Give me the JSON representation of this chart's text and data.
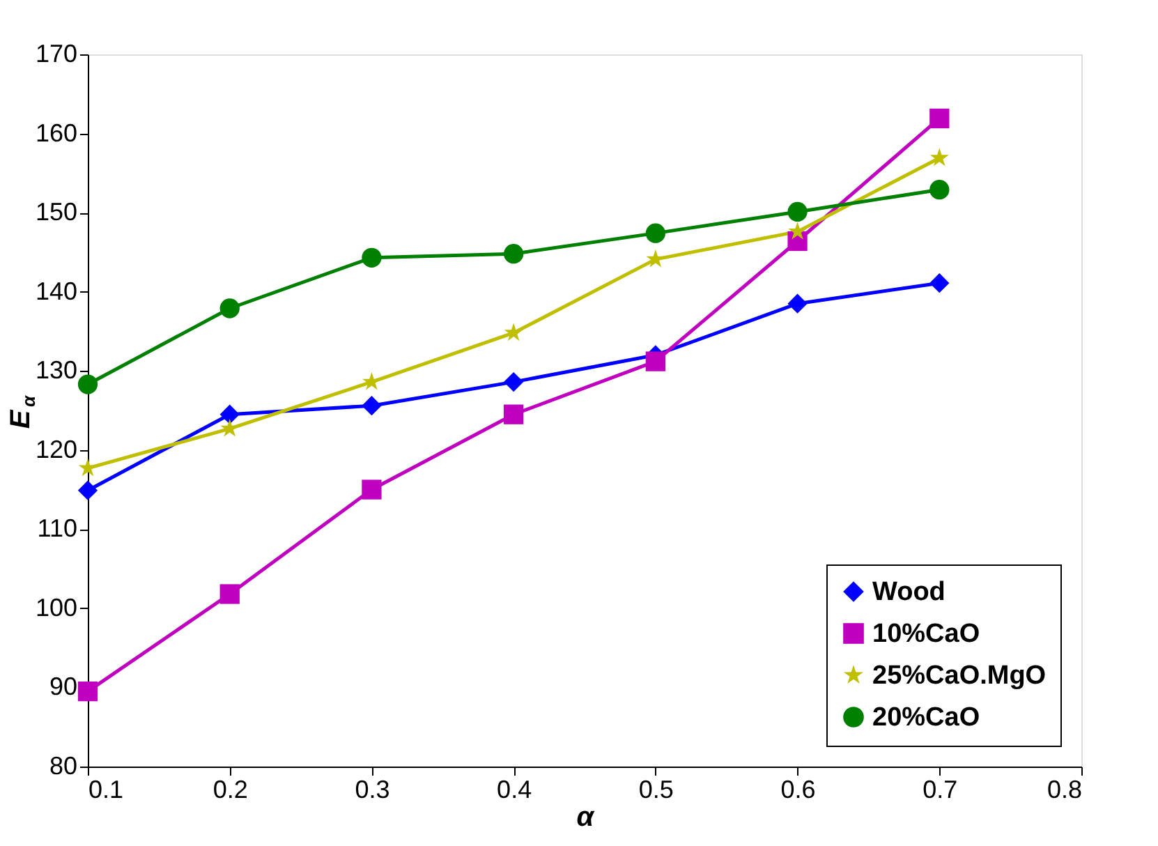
{
  "chart_data": {
    "type": "line",
    "xlabel": "α",
    "ylabel": "E$_{α}$",
    "x": [
      0.1,
      0.2,
      0.3,
      0.4,
      0.5,
      0.6,
      0.7
    ],
    "series": [
      {
        "name": "Wood",
        "color": "#0000ff",
        "marker": "diamond",
        "values": [
          114.9,
          124.5,
          125.6,
          128.6,
          132.0,
          138.5,
          141.1
        ]
      },
      {
        "name": "10%CaO",
        "color": "#bf00bf",
        "marker": "square",
        "values": [
          89.5,
          101.8,
          115.0,
          124.5,
          131.2,
          146.4,
          161.9
        ]
      },
      {
        "name": "25%CaO.MgO",
        "color": "#bfbf00",
        "marker": "star",
        "values": [
          117.7,
          122.7,
          128.6,
          134.8,
          144.1,
          147.6,
          156.9
        ]
      },
      {
        "name": "20%CaO",
        "color": "#008000",
        "marker": "circle",
        "values": [
          128.3,
          137.9,
          144.3,
          144.8,
          147.4,
          150.1,
          152.9
        ]
      }
    ],
    "xlim": [
      0.1,
      0.8
    ],
    "xticks": [
      0.1,
      0.2,
      0.3,
      0.4,
      0.5,
      0.6,
      0.7,
      0.8
    ],
    "ylim": [
      80,
      170
    ],
    "yticks": [
      80,
      90,
      100,
      110,
      120,
      130,
      140,
      150,
      160,
      170
    ],
    "grid": false,
    "legend": "bottom right",
    "line_style": "solid"
  }
}
